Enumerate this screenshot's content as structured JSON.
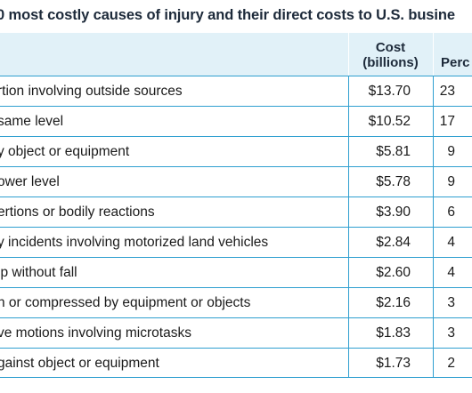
{
  "title": "0 most costly causes of injury and their direct costs to U.S. busine",
  "chart_data": {
    "type": "table",
    "title": "0 most costly causes of injury and their direct costs to U.S. busine",
    "columns": [
      "Cost (billions)",
      "Perc"
    ],
    "header": {
      "cost_line1": "Cost",
      "cost_line2": "(billions)",
      "percent": "Perc"
    },
    "rows": [
      {
        "cause": "rtion involving outside sources",
        "cost": "$13.70",
        "percent": "23"
      },
      {
        "cause": "same level",
        "cost": "$10.52",
        "percent": "17"
      },
      {
        "cause": "y object or equipment",
        "cost": "$5.81",
        "percent": "9"
      },
      {
        "cause": "ower level",
        "cost": "$5.78",
        "percent": "9"
      },
      {
        "cause": "ertions or bodily reactions",
        "cost": "$3.90",
        "percent": "6"
      },
      {
        "cause": "y incidents involving motorized land vehicles",
        "cost": "$2.84",
        "percent": "4"
      },
      {
        "cause": "ip without fall",
        "cost": "$2.60",
        "percent": "4"
      },
      {
        "cause": "n or compressed by equipment or objects",
        "cost": "$2.16",
        "percent": "3"
      },
      {
        "cause": "ve motions involving microtasks",
        "cost": "$1.83",
        "percent": "3"
      },
      {
        "cause": "gainst object or equipment",
        "cost": "$1.73",
        "percent": "2"
      }
    ],
    "cost_values": [
      13.7,
      10.52,
      5.81,
      5.78,
      3.9,
      2.84,
      2.6,
      2.16,
      1.83,
      1.73
    ]
  },
  "colors": {
    "header_background": "#e1f1f8",
    "row_border": "#2f9fd0",
    "title": "#1d2a3a"
  }
}
